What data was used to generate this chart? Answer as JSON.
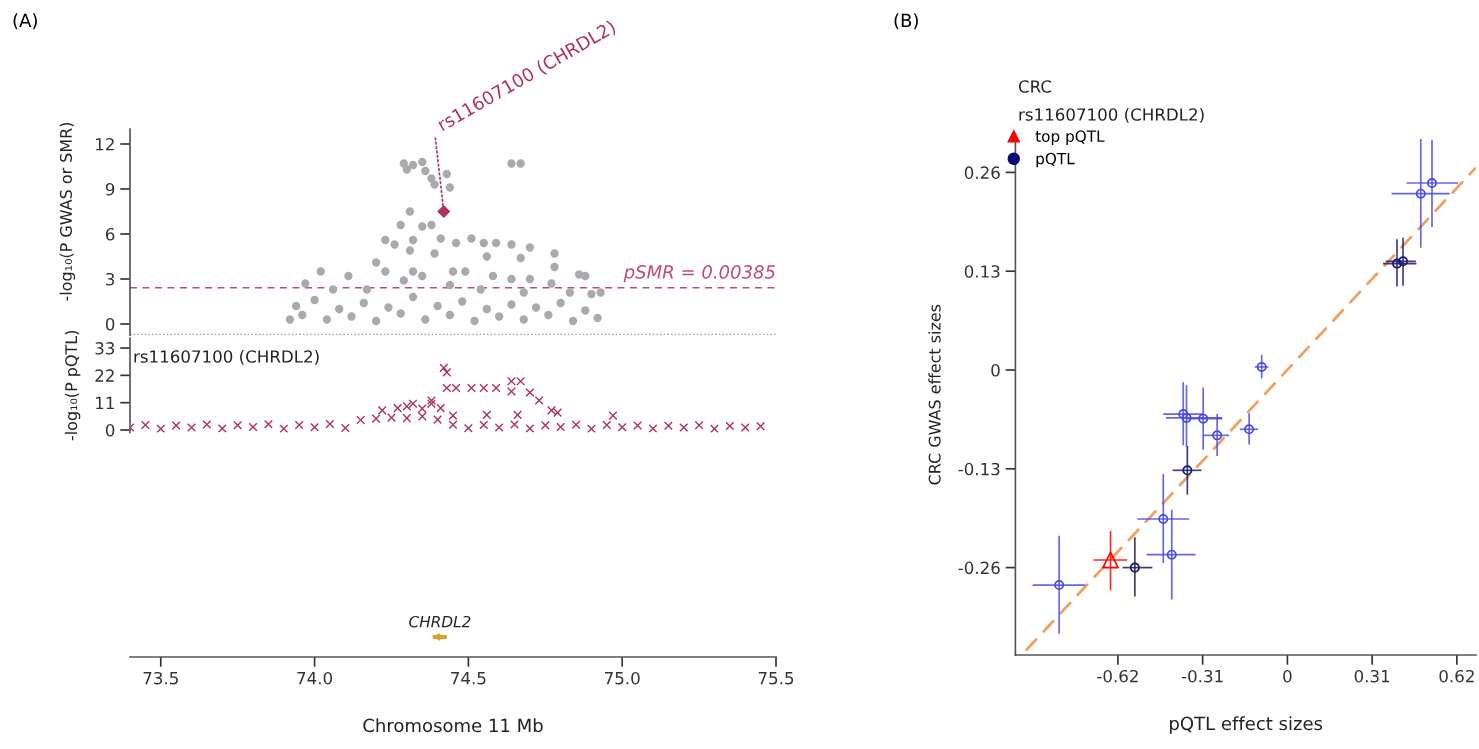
{
  "chart_data": [
    {
      "type": "scatter",
      "ylabel": "-log₁₀(P GWAS or SMR)",
      "xlim": [
        73.4,
        75.5
      ],
      "ylim": [
        -0.75,
        13
      ],
      "yticks": [
        0,
        3,
        6,
        9,
        12
      ],
      "tick_labels": "y",
      "grid": false,
      "legend": false,
      "series": [
        {
          "color": "#aaaaaa",
          "marker": "circle",
          "x": [
            73.92,
            73.94,
            73.96,
            74.0,
            74.04,
            74.08,
            74.12,
            74.16,
            74.2,
            74.24,
            74.28,
            74.32,
            74.36,
            74.4,
            74.44,
            74.48,
            74.52,
            74.56,
            74.6,
            74.64,
            74.68,
            74.72,
            74.76,
            74.8,
            74.84,
            74.88,
            74.92,
            74.29,
            74.3,
            74.32,
            74.35,
            74.36,
            74.38,
            74.39,
            74.43,
            74.44,
            74.31,
            74.28,
            74.32,
            74.35,
            74.38,
            74.41,
            74.23,
            74.26,
            74.31,
            74.2,
            74.23,
            74.32,
            74.39,
            74.46,
            74.51,
            74.55,
            74.59,
            74.64,
            74.7,
            74.78,
            74.67,
            74.56,
            74.45,
            74.49,
            74.58,
            74.64,
            74.7,
            74.78,
            74.77,
            74.86,
            74.88,
            74.02,
            74.11,
            73.97,
            74.06,
            74.17,
            74.29,
            74.35,
            74.44,
            74.54,
            74.68,
            74.83,
            74.9,
            74.93,
            74.67,
            74.64
          ],
          "values": [
            0.3,
            1.2,
            0.6,
            1.6,
            0.3,
            1.0,
            0.5,
            1.4,
            0.2,
            1.1,
            0.7,
            1.8,
            0.3,
            1.2,
            0.6,
            1.5,
            0.2,
            1.0,
            0.5,
            1.3,
            0.3,
            1.1,
            0.6,
            1.4,
            0.2,
            0.9,
            0.4,
            10.7,
            10.3,
            10.6,
            10.8,
            10.2,
            9.7,
            9.3,
            10.0,
            9.1,
            7.5,
            6.6,
            5.6,
            6.5,
            6.6,
            5.7,
            5.6,
            5.3,
            4.9,
            4.1,
            3.5,
            3.5,
            4.7,
            5.4,
            5.7,
            5.4,
            5.4,
            5.3,
            5.1,
            4.7,
            4.4,
            4.5,
            3.5,
            3.5,
            3.2,
            3.0,
            3.0,
            3.8,
            2.7,
            3.3,
            3.2,
            3.5,
            3.2,
            2.7,
            2.3,
            2.3,
            2.9,
            3.2,
            2.6,
            2.3,
            2.1,
            2.1,
            2.0,
            2.1,
            10.7,
            10.7
          ]
        },
        {
          "color": "#b0305f",
          "marker": "diamond",
          "x": [
            74.42
          ],
          "values": [
            7.5
          ]
        }
      ],
      "ref_lines": [
        {
          "axis": "y",
          "value": 2.4145,
          "color": "#c04a78",
          "line_style": "dashed"
        },
        {
          "axis": "y",
          "value": -0.7,
          "color": "#999999",
          "line_style": "dotted"
        }
      ],
      "annotations": [
        "(A)",
        {
          "text": "rs11607100 (CHRDL2)",
          "x": 74.42,
          "y": 7.5
        },
        {
          "text": "pSMR = 0.00385",
          "x": 75.5,
          "y": 2.4145
        }
      ]
    },
    {
      "type": "scatter",
      "title": "rs11607100 (CHRDL2)",
      "ylabel": "-log₁₀(P pQTL)",
      "xlim": [
        73.4,
        75.5
      ],
      "ylim": [
        -1,
        37
      ],
      "yticks": [
        0,
        11,
        22,
        33
      ],
      "tick_labels": "y",
      "grid": false,
      "legend": false,
      "series": [
        {
          "color": "#b0305f",
          "marker": "cross",
          "x": [
            73.4,
            73.45,
            73.5,
            73.55,
            73.6,
            73.65,
            73.7,
            73.75,
            73.8,
            73.85,
            73.9,
            73.95,
            74.0,
            74.05,
            74.1,
            74.15,
            74.2,
            74.25,
            74.3,
            74.35,
            74.4,
            74.45,
            74.5,
            74.55,
            74.6,
            74.65,
            74.7,
            74.75,
            74.8,
            74.85,
            74.9,
            74.95,
            75.0,
            75.05,
            75.1,
            75.15,
            75.2,
            75.25,
            75.3,
            75.35,
            75.4,
            75.45,
            74.27,
            74.3,
            74.32,
            74.35,
            74.38,
            74.38,
            74.41,
            74.42,
            74.43,
            74.43,
            74.46,
            74.51,
            74.55,
            74.59,
            74.64,
            74.67,
            74.64,
            74.7,
            74.73,
            74.77,
            74.79,
            74.56,
            74.66,
            74.45,
            74.97,
            74.22
          ],
          "values": [
            1.0,
            2.0,
            0.5,
            1.8,
            1.0,
            2.2,
            0.6,
            1.9,
            1.2,
            2.3,
            0.5,
            2.0,
            1.1,
            2.4,
            0.8,
            4.0,
            4.6,
            5.0,
            4.8,
            5.5,
            4.2,
            2.1,
            0.7,
            2.0,
            1.0,
            2.2,
            0.6,
            1.9,
            1.2,
            2.1,
            0.5,
            2.0,
            1.1,
            1.8,
            0.6,
            1.7,
            1.0,
            1.9,
            0.5,
            1.6,
            1.0,
            1.5,
            8.8,
            9.5,
            10.6,
            8.6,
            10.6,
            11.9,
            8.8,
            25.0,
            23.2,
            16.9,
            16.9,
            16.9,
            16.9,
            16.9,
            19.6,
            19.6,
            15.5,
            15.1,
            11.9,
            7.9,
            7.0,
            6.1,
            6.1,
            5.8,
            5.8,
            7.9
          ]
        }
      ]
    },
    {
      "type": "bar",
      "orientation": "horizontal",
      "xlabel": "Chromosome 11 Mb",
      "xlim": [
        73.4,
        75.5
      ],
      "xticks": [
        73.5,
        {
          "value": 74,
          "label": "74.0"
        },
        74.5,
        {
          "value": 75,
          "label": "75.0"
        },
        75.5
      ],
      "tick_labels": "x",
      "categories": [
        null
      ],
      "series": [
        {
          "color": "#d9a030",
          "base": [
            74.385
          ],
          "values": [
            0.045
          ],
          "value_labels": [
            "CHRDL2"
          ]
        }
      ]
    },
    {
      "type": "scatter",
      "title": "CRC",
      "subtitle": "rs11607100 (CHRDL2)",
      "xlabel": "pQTL effect sizes",
      "ylabel": "CRC GWAS effect sizes",
      "xlim": [
        -0.995,
        0.69
      ],
      "ylim": [
        -0.375,
        0.31
      ],
      "xticks": [
        -0.62,
        -0.31,
        0,
        0.31,
        0.62
      ],
      "yticks": [
        -0.26,
        -0.13,
        0,
        0.13,
        0.26
      ],
      "grid": false,
      "legend": "top left",
      "series": [
        {
          "name": "top pQTL",
          "color": "#ff0000",
          "marker": "triangle",
          "x": [
            -0.647
          ],
          "values": [
            -0.25
          ],
          "errors": [
            [
              -0.29,
              -0.212
            ]
          ],
          "xerrors": [
            [
              -0.71,
              -0.586
            ]
          ]
        },
        {
          "name": "pQTL",
          "color": "#0a0a7a",
          "marker": "circle",
          "x": [
            0.529,
            0.488,
            0.401,
            0.423,
            -0.094,
            -0.381,
            -0.369,
            -0.308,
            -0.257,
            -0.14,
            -0.366,
            -0.454,
            -0.423,
            -0.558,
            -0.835
          ],
          "values": [
            0.246,
            0.232,
            0.14,
            0.143,
            0.004,
            -0.058,
            -0.063,
            -0.064,
            -0.086,
            -0.078,
            -0.132,
            -0.196,
            -0.243,
            -0.26,
            -0.283
          ],
          "colors": [
            "#4a4ae0",
            "#4a4ae0",
            "#1a1a70",
            "#1a1a70",
            "#4a4ae0",
            "#4a4ae0",
            "#4a4ae0",
            "#4a4ae0",
            "#4a4ae0",
            "#4a4ae0",
            "#1a1a70",
            "#4a4ae0",
            "#4a4ae0",
            "#1a1a50",
            "#4a4ae0"
          ],
          "errors": [
            [
              0.188,
              0.303
            ],
            [
              0.161,
              0.304
            ],
            [
              0.11,
              0.172
            ],
            [
              0.111,
              0.174
            ],
            [
              -0.011,
              0.02
            ],
            [
              -0.099,
              -0.016
            ],
            [
              -0.101,
              -0.02
            ],
            [
              -0.105,
              -0.023
            ],
            [
              -0.113,
              -0.058
            ],
            [
              -0.098,
              -0.057
            ],
            [
              -0.164,
              -0.1
            ],
            [
              -0.254,
              -0.137
            ],
            [
              -0.302,
              -0.184
            ],
            [
              -0.298,
              -0.22
            ],
            [
              -0.347,
              -0.218
            ]
          ],
          "xerrors": [
            [
              0.436,
              0.625
            ],
            [
              0.381,
              0.594
            ],
            [
              0.35,
              0.472
            ],
            [
              0.36,
              0.47
            ],
            [
              -0.119,
              -0.07
            ],
            [
              -0.454,
              -0.308
            ],
            [
              -0.444,
              -0.239
            ],
            [
              -0.369,
              -0.238
            ],
            [
              -0.308,
              -0.213
            ],
            [
              -0.174,
              -0.107
            ],
            [
              -0.42,
              -0.314
            ],
            [
              -0.549,
              -0.359
            ],
            [
              -0.515,
              -0.336
            ],
            [
              -0.603,
              -0.494
            ],
            [
              -0.932,
              -0.74
            ]
          ]
        },
        {
          "type": "line",
          "color": "#f0a060",
          "line_style": "dashed",
          "x": [
            -0.954,
            0.686
          ],
          "values": [
            -0.368,
            0.265
          ]
        }
      ],
      "annotations": [
        "(B)"
      ]
    }
  ]
}
